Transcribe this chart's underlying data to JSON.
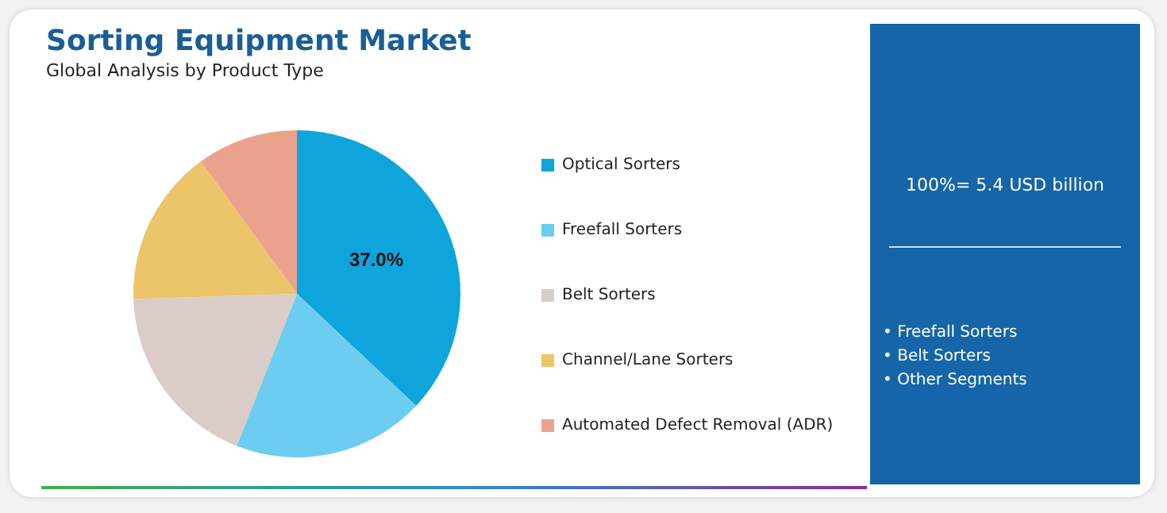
{
  "chart_data": {
    "type": "pie",
    "title": "Sorting Equipment Market",
    "subtitle": "Global Analysis by Product Type",
    "categories": [
      "Optical Sorters",
      "Freefall Sorters",
      "Belt Sorters",
      "Channel/Lane Sorters",
      "Automated Defect Removal (ADR)"
    ],
    "values": [
      37,
      19,
      18.5,
      15.5,
      10
    ],
    "colors": [
      "#0ea5dd",
      "#6dcdf0",
      "#d9ccc9",
      "#ecc46a",
      "#eba28c"
    ],
    "value_labels": [
      "37.0%",
      null,
      null,
      null,
      null
    ],
    "legend": "right",
    "annotations": [
      "100%= 5.4 USD billion",
      "• Freefall Sorters",
      "• Belt Sorters",
      "• Other Segments"
    ]
  }
}
